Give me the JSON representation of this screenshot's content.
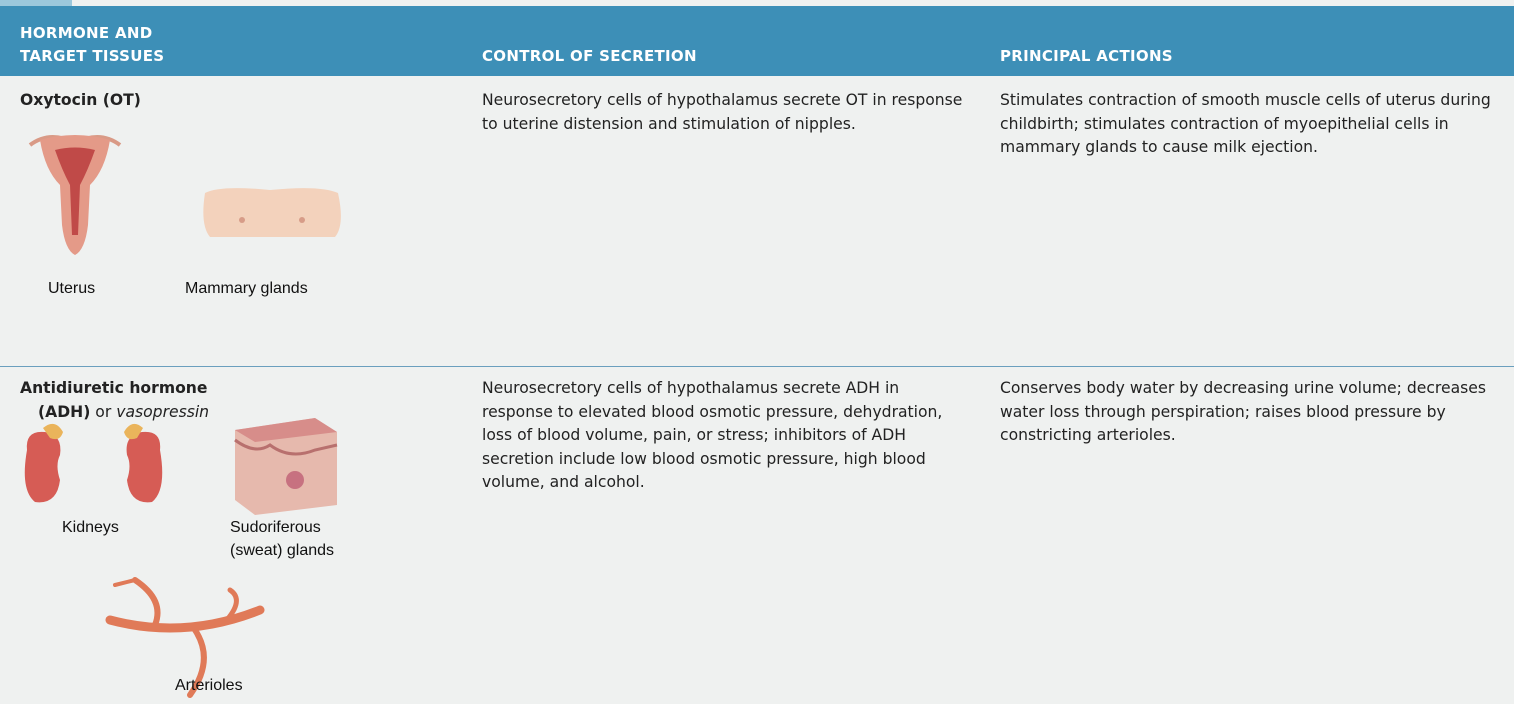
{
  "header": {
    "columns": [
      "HORMONE AND TARGET TISSUES",
      "CONTROL OF SECRETION",
      "PRINCIPAL ACTIONS"
    ]
  },
  "rows": [
    {
      "hormone": "Oxytocin (OT)",
      "tissues": [
        "Uterus",
        "Mammary glands"
      ],
      "control": "Neurosecretory cells of hypothalamus secrete OT in response to uterine distension and stimulation of nipples.",
      "actions": "Stimulates contraction of smooth muscle cells of uterus during childbirth; stimulates contraction of myoepithelial cells in mammary glands to cause milk ejection."
    },
    {
      "hormone": "Antidiuretic hormone",
      "abbreviation": "(ADH)",
      "connector": "or",
      "alternate_name": "vasopressin",
      "tissues": [
        "Kidneys",
        "Sudoriferous (sweat) glands",
        "Arterioles"
      ],
      "control": "Neurosecretory cells of hypothalamus secrete ADH in response to elevated blood osmotic pressure, dehydration, loss of blood volume, pain, or stress; inhibitors of ADH secretion include low blood osmotic pressure, high blood volume, and alcohol.",
      "actions": "Conserves body water by decreasing urine volume; decreases water loss through perspiration; raises blood pressure by constricting arterioles."
    }
  ]
}
